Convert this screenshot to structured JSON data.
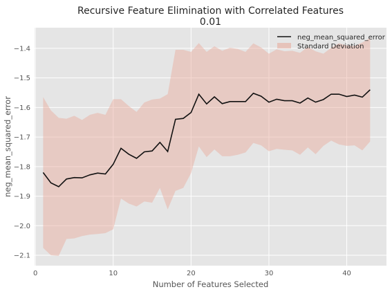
{
  "chart_data": {
    "type": "line",
    "title": "Recursive Feature Elimination with Correlated Features",
    "subtitle": "0.01",
    "xlabel": "Number of Features Selected",
    "ylabel": "neg_mean_squared_error",
    "xlim": [
      -0.1,
      45.1
    ],
    "ylim": [
      -2.135,
      -1.33
    ],
    "xticks": [
      0,
      10,
      20,
      30,
      40
    ],
    "yticks": [
      -2.1,
      -2.0,
      -1.9,
      -1.8,
      -1.7,
      -1.6,
      -1.5,
      -1.4
    ],
    "grid": true,
    "legend_position": "top-right",
    "colors": {
      "background": "#e5e5e5",
      "grid": "#ffffff",
      "line": "#111111",
      "band": "#e8a898"
    },
    "x": [
      1,
      2,
      3,
      4,
      5,
      6,
      7,
      8,
      9,
      10,
      11,
      12,
      13,
      14,
      15,
      16,
      17,
      18,
      19,
      20,
      21,
      22,
      23,
      24,
      25,
      26,
      27,
      28,
      29,
      30,
      31,
      32,
      33,
      34,
      35,
      36,
      37,
      38,
      39,
      40,
      41,
      42,
      43
    ],
    "series": [
      {
        "name": "neg_mean_squared_error",
        "values": [
          -1.82,
          -1.855,
          -1.868,
          -1.842,
          -1.837,
          -1.838,
          -1.828,
          -1.822,
          -1.825,
          -1.792,
          -1.738,
          -1.758,
          -1.772,
          -1.75,
          -1.747,
          -1.718,
          -1.749,
          -1.64,
          -1.637,
          -1.617,
          -1.555,
          -1.588,
          -1.564,
          -1.587,
          -1.58,
          -1.58,
          -1.58,
          -1.552,
          -1.562,
          -1.582,
          -1.572,
          -1.577,
          -1.577,
          -1.585,
          -1.568,
          -1.582,
          -1.573,
          -1.555,
          -1.555,
          -1.563,
          -1.558,
          -1.565,
          -1.54
        ]
      }
    ],
    "band": {
      "name": "Standard Deviation",
      "upper": [
        -1.565,
        -1.61,
        -1.635,
        -1.638,
        -1.628,
        -1.642,
        -1.625,
        -1.618,
        -1.625,
        -1.572,
        -1.572,
        -1.595,
        -1.615,
        -1.583,
        -1.573,
        -1.57,
        -1.555,
        -1.405,
        -1.405,
        -1.412,
        -1.382,
        -1.412,
        -1.393,
        -1.408,
        -1.398,
        -1.402,
        -1.412,
        -1.383,
        -1.397,
        -1.418,
        -1.403,
        -1.41,
        -1.408,
        -1.415,
        -1.395,
        -1.41,
        -1.418,
        -1.398,
        -1.383,
        -1.39,
        -1.392,
        -1.38,
        -1.365
      ],
      "lower": [
        -2.075,
        -2.1,
        -2.102,
        -2.045,
        -2.043,
        -2.035,
        -2.03,
        -2.028,
        -2.025,
        -2.012,
        -1.908,
        -1.925,
        -1.935,
        -1.918,
        -1.922,
        -1.872,
        -1.945,
        -1.882,
        -1.872,
        -1.822,
        -1.732,
        -1.768,
        -1.742,
        -1.765,
        -1.765,
        -1.76,
        -1.752,
        -1.72,
        -1.728,
        -1.748,
        -1.74,
        -1.743,
        -1.745,
        -1.76,
        -1.735,
        -1.758,
        -1.73,
        -1.712,
        -1.725,
        -1.73,
        -1.728,
        -1.745,
        -1.715
      ]
    }
  }
}
